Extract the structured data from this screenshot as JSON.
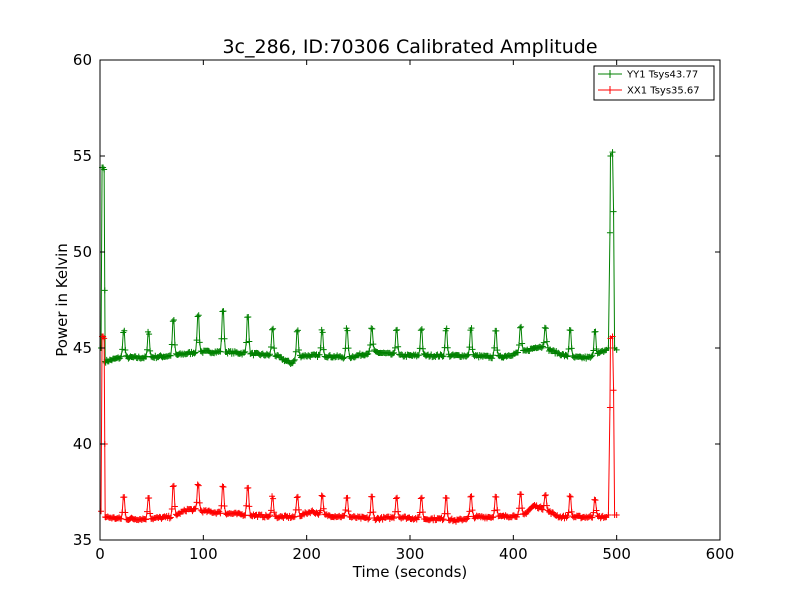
{
  "chart_data": {
    "type": "line",
    "title": "3c_286, ID:70306 Calibrated Amplitude",
    "xlabel": "Time (seconds)",
    "ylabel": "Power in Kelvin",
    "xlim": [
      0,
      600
    ],
    "ylim": [
      35,
      60
    ],
    "xticks": [
      0,
      100,
      200,
      300,
      400,
      500,
      600
    ],
    "yticks": [
      35,
      40,
      45,
      50,
      55,
      60
    ],
    "grid": false,
    "legend_position": "top-right",
    "marker": "+",
    "series": [
      {
        "name": "YY1 Tsys43.77",
        "color": "#008000",
        "baseline": [
          [
            5,
            44.3
          ],
          [
            20,
            44.5
          ],
          [
            45,
            44.5
          ],
          [
            70,
            44.6
          ],
          [
            95,
            44.8
          ],
          [
            120,
            44.8
          ],
          [
            145,
            44.7
          ],
          [
            170,
            44.6
          ],
          [
            185,
            44.2
          ],
          [
            195,
            44.6
          ],
          [
            215,
            44.6
          ],
          [
            240,
            44.5
          ],
          [
            265,
            44.8
          ],
          [
            290,
            44.6
          ],
          [
            310,
            44.6
          ],
          [
            335,
            44.6
          ],
          [
            360,
            44.6
          ],
          [
            385,
            44.5
          ],
          [
            410,
            44.8
          ],
          [
            425,
            45.1
          ],
          [
            435,
            44.9
          ],
          [
            455,
            44.5
          ],
          [
            475,
            44.5
          ],
          [
            490,
            44.9
          ]
        ],
        "peaks": [
          [
            23,
            46.1
          ],
          [
            47,
            46.0
          ],
          [
            71,
            46.7
          ],
          [
            95,
            47.0
          ],
          [
            119,
            47.3
          ],
          [
            143,
            47.0
          ],
          [
            167,
            46.2
          ],
          [
            191,
            46.1
          ],
          [
            215,
            46.1
          ],
          [
            239,
            46.2
          ],
          [
            263,
            46.2
          ],
          [
            287,
            46.2
          ],
          [
            311,
            46.2
          ],
          [
            335,
            46.2
          ],
          [
            359,
            46.2
          ],
          [
            383,
            46.2
          ],
          [
            407,
            46.3
          ],
          [
            431,
            46.3
          ],
          [
            455,
            46.2
          ],
          [
            479,
            46.1
          ]
        ],
        "spike_start": [
          [
            1,
            45.0
          ],
          [
            2,
            54.4
          ],
          [
            3,
            54.4
          ],
          [
            4,
            54.3
          ],
          [
            4.6,
            48
          ],
          [
            5,
            44.3
          ]
        ],
        "spike_end": [
          [
            490,
            44.9
          ],
          [
            492,
            45.0
          ],
          [
            493.5,
            51.0
          ],
          [
            494,
            55.0
          ],
          [
            496,
            55.2
          ],
          [
            497,
            52.1
          ],
          [
            498,
            45.0
          ],
          [
            500,
            44.9
          ]
        ]
      },
      {
        "name": "XX1 Tsys35.67",
        "color": "#ff0000",
        "baseline": [
          [
            5,
            36.2
          ],
          [
            20,
            36.1
          ],
          [
            45,
            36.1
          ],
          [
            70,
            36.2
          ],
          [
            85,
            36.6
          ],
          [
            100,
            36.5
          ],
          [
            120,
            36.4
          ],
          [
            145,
            36.3
          ],
          [
            170,
            36.2
          ],
          [
            190,
            36.2
          ],
          [
            205,
            36.5
          ],
          [
            215,
            36.3
          ],
          [
            240,
            36.2
          ],
          [
            265,
            36.1
          ],
          [
            290,
            36.2
          ],
          [
            310,
            36.1
          ],
          [
            335,
            36.1
          ],
          [
            345,
            36.0
          ],
          [
            360,
            36.2
          ],
          [
            385,
            36.2
          ],
          [
            410,
            36.3
          ],
          [
            420,
            36.8
          ],
          [
            430,
            36.6
          ],
          [
            445,
            36.2
          ],
          [
            470,
            36.2
          ],
          [
            490,
            36.2
          ]
        ],
        "peaks": [
          [
            23,
            37.4
          ],
          [
            47,
            37.4
          ],
          [
            71,
            38.0
          ],
          [
            95,
            38.1
          ],
          [
            119,
            38.0
          ],
          [
            143,
            38.0
          ],
          [
            167,
            37.4
          ],
          [
            191,
            37.4
          ],
          [
            215,
            37.4
          ],
          [
            239,
            37.4
          ],
          [
            263,
            37.4
          ],
          [
            287,
            37.4
          ],
          [
            311,
            37.4
          ],
          [
            335,
            37.4
          ],
          [
            359,
            37.4
          ],
          [
            383,
            37.5
          ],
          [
            407,
            37.5
          ],
          [
            431,
            37.5
          ],
          [
            455,
            37.4
          ],
          [
            479,
            37.3
          ]
        ],
        "spike_start": [
          [
            1,
            36.5
          ],
          [
            2,
            45.6
          ],
          [
            3,
            45.6
          ],
          [
            4,
            45.5
          ],
          [
            4.6,
            40
          ],
          [
            5,
            36.2
          ]
        ],
        "spike_end": [
          [
            490,
            36.2
          ],
          [
            492,
            36.3
          ],
          [
            493.5,
            41.9
          ],
          [
            494,
            45.5
          ],
          [
            496,
            45.6
          ],
          [
            497,
            42.8
          ],
          [
            498,
            36.3
          ],
          [
            500,
            36.3
          ]
        ]
      }
    ]
  }
}
